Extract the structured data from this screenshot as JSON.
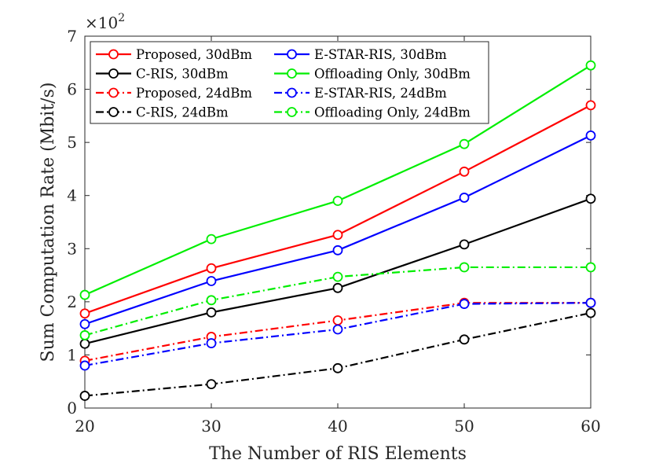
{
  "chart_data": {
    "type": "line",
    "xlabel": "The Number of RIS Elements",
    "ylabel": "Sum Computation Rate (Mbit/s)",
    "y_multiplier": "×10",
    "y_multiplier_exp": "2",
    "x": [
      20,
      30,
      40,
      50,
      60
    ],
    "xlim": [
      20,
      60
    ],
    "ylim": [
      0,
      7
    ],
    "xticks": [
      "20",
      "30",
      "40",
      "50",
      "60"
    ],
    "yticks": [
      "0",
      "1",
      "2",
      "3",
      "4",
      "5",
      "6",
      "7"
    ],
    "grid": false,
    "legend_position": "top-left",
    "series": [
      {
        "name": "Proposed, 30dBm",
        "color": "#ff0000",
        "dash": "solid",
        "values": [
          1.78,
          2.63,
          3.26,
          4.45,
          5.7
        ]
      },
      {
        "name": "E-STAR-RIS, 30dBm",
        "color": "#0000ff",
        "dash": "solid",
        "values": [
          1.58,
          2.39,
          2.97,
          3.96,
          5.13
        ]
      },
      {
        "name": "C-RIS, 30dBm",
        "color": "#000000",
        "dash": "solid",
        "values": [
          1.21,
          1.8,
          2.26,
          3.08,
          3.94
        ]
      },
      {
        "name": "Offloading Only, 30dBm",
        "color": "#00ee00",
        "dash": "solid",
        "values": [
          2.13,
          3.18,
          3.9,
          4.97,
          6.45
        ]
      },
      {
        "name": "Proposed, 24dBm",
        "color": "#ff0000",
        "dash": "dashdot",
        "values": [
          0.89,
          1.34,
          1.65,
          1.98,
          1.98
        ]
      },
      {
        "name": "E-STAR-RIS, 24dBm",
        "color": "#0000ff",
        "dash": "dashdot",
        "values": [
          0.8,
          1.22,
          1.48,
          1.96,
          1.98
        ]
      },
      {
        "name": "C-RIS, 24dBm",
        "color": "#000000",
        "dash": "dashdot",
        "values": [
          0.23,
          0.45,
          0.75,
          1.29,
          1.79
        ]
      },
      {
        "name": "Offloading Only, 24dBm",
        "color": "#00ee00",
        "dash": "dashdot",
        "values": [
          1.37,
          2.03,
          2.47,
          2.65,
          2.65
        ]
      }
    ]
  }
}
